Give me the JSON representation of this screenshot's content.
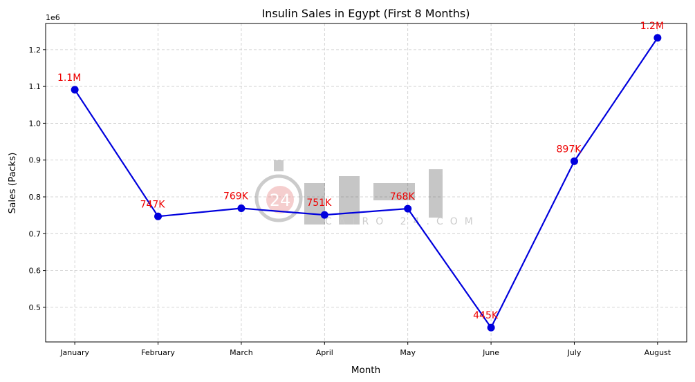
{
  "chart_data": {
    "type": "line",
    "title": "Insulin Sales in Egypt (First 8 Months)",
    "xlabel": "Month",
    "ylabel": "Sales (Packs)",
    "y_offset_label": "1e6",
    "categories": [
      "January",
      "February",
      "March",
      "April",
      "May",
      "June",
      "July",
      "August"
    ],
    "values": [
      1091000,
      747000,
      769000,
      751000,
      768000,
      445000,
      897000,
      1232000
    ],
    "data_labels": [
      "1.1M",
      "747K",
      "769K",
      "751K",
      "768K",
      "445K",
      "897K",
      "1.2M"
    ],
    "yticks": [
      0.5,
      0.6,
      0.7,
      0.8,
      0.9,
      1.0,
      1.1,
      1.2
    ],
    "ytick_labels": [
      "0.5",
      "0.6",
      "0.7",
      "0.8",
      "0.9",
      "1.0",
      "1.1",
      "1.2"
    ],
    "ylim": [
      0.406,
      1.271
    ],
    "xlim": [
      -0.35,
      7.35
    ],
    "grid": true,
    "line_color": "#0000dd",
    "label_color": "#ee0000"
  },
  "watermark": {
    "number": "24",
    "text": "CAIRO 24.COM"
  }
}
